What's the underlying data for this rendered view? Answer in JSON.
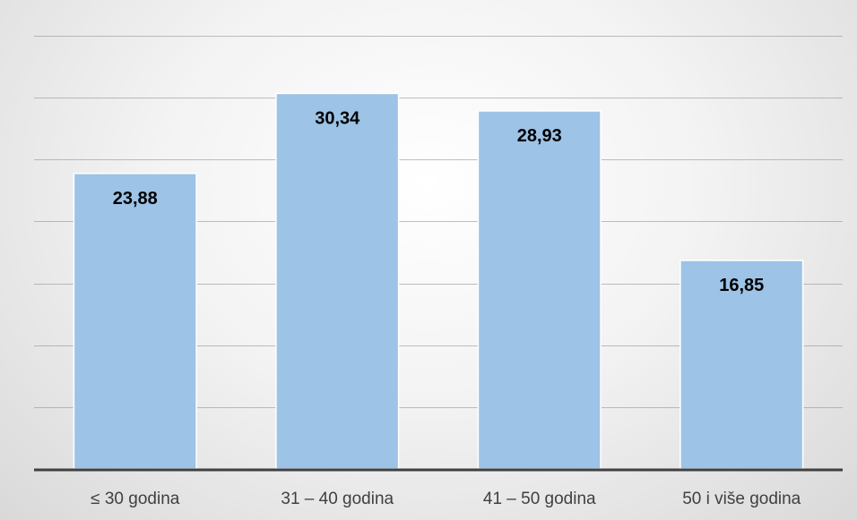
{
  "chart_data": {
    "type": "bar",
    "categories": [
      "≤ 30 godina",
      "31 – 40 godina",
      "41 – 50 godina",
      "50 i više godina"
    ],
    "values": [
      23.88,
      30.34,
      28.93,
      16.85
    ],
    "data_labels": [
      "23,88",
      "30,34",
      "28,93",
      "16,85"
    ],
    "title": "",
    "xlabel": "",
    "ylabel": "",
    "ylim": [
      0,
      35
    ],
    "y_gridline_step": 5,
    "grid": true,
    "legend": "none",
    "y_tick_labels_visible": false,
    "colors": {
      "bar": "#9dc3e6",
      "bar_border": "#ffffff",
      "gridline": "#8c8c8c",
      "axis": "#404040",
      "label": "#000000",
      "tick_label": "#404040"
    }
  }
}
